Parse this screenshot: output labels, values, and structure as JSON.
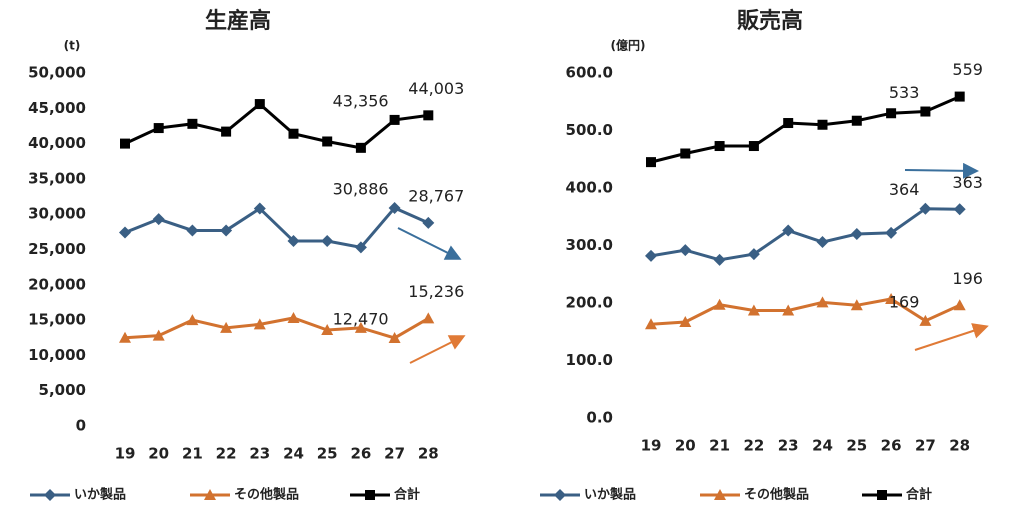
{
  "chart_data": [
    {
      "type": "line",
      "title": "生産高",
      "y_label": "(t)",
      "categories": [
        "19",
        "20",
        "21",
        "22",
        "23",
        "24",
        "25",
        "26",
        "27",
        "28"
      ],
      "ylim": [
        0,
        50000
      ],
      "yticks": [
        0,
        {
          "value": 5000,
          "label": "5,000"
        },
        {
          "value": 10000,
          "label": "10,000"
        },
        {
          "value": 15000,
          "label": "15,000"
        },
        {
          "value": 20000,
          "label": "20,000"
        },
        {
          "value": 25000,
          "label": "25,000"
        },
        {
          "value": 30000,
          "label": "30,000"
        },
        {
          "value": 35000,
          "label": "35,000"
        },
        {
          "value": 40000,
          "label": "40,000"
        },
        {
          "value": 45000,
          "label": "45,000"
        },
        {
          "value": 50000,
          "label": "50,000"
        }
      ],
      "series": [
        {
          "name": "いか製品",
          "color": "#3a5f84",
          "marker": "diamond",
          "values": [
            27400,
            29300,
            27700,
            27700,
            30800,
            26200,
            26200,
            25300,
            30886,
            28767
          ],
          "value_labels": [
            null,
            null,
            null,
            null,
            null,
            null,
            null,
            null,
            "30,886",
            "28,767"
          ]
        },
        {
          "name": "その他製品",
          "color": "#d2722f",
          "marker": "triangle",
          "values": [
            12500,
            12800,
            15000,
            13900,
            14400,
            15300,
            13600,
            13900,
            12470,
            15236
          ],
          "value_labels": [
            null,
            null,
            null,
            null,
            null,
            null,
            null,
            null,
            "12,470",
            "15,236"
          ]
        },
        {
          "name": "合計",
          "color": "#000000",
          "marker": "square",
          "values": [
            40000,
            42200,
            42800,
            41700,
            45600,
            41400,
            40300,
            39400,
            43356,
            44003
          ],
          "value_labels": [
            null,
            null,
            null,
            null,
            null,
            null,
            null,
            null,
            "43,356",
            "44,003"
          ]
        }
      ]
    },
    {
      "type": "line",
      "title": "販売高",
      "y_label": "(億円)",
      "categories": [
        "19",
        "20",
        "21",
        "22",
        "23",
        "24",
        "25",
        "26",
        "27",
        "28"
      ],
      "ylim": [
        0,
        600
      ],
      "yticks": [
        {
          "value": 0,
          "label": "0.0"
        },
        {
          "value": 100,
          "label": "100.0"
        },
        {
          "value": 200,
          "label": "200.0"
        },
        {
          "value": 300,
          "label": "300.0"
        },
        {
          "value": 400,
          "label": "400.0"
        },
        {
          "value": 500,
          "label": "500.0"
        },
        {
          "value": 600,
          "label": "600.0"
        }
      ],
      "series": [
        {
          "name": "いか製品",
          "color": "#3a5f84",
          "marker": "diamond",
          "values": [
            282,
            292,
            275,
            285,
            326,
            306,
            320,
            322,
            364,
            363
          ],
          "value_labels": [
            null,
            null,
            null,
            null,
            null,
            null,
            null,
            null,
            "364",
            "363"
          ]
        },
        {
          "name": "その他製品",
          "color": "#d2722f",
          "marker": "triangle",
          "values": [
            163,
            167,
            197,
            187,
            187,
            201,
            196,
            207,
            169,
            196
          ],
          "value_labels": [
            null,
            null,
            null,
            null,
            null,
            null,
            null,
            null,
            "169",
            "196"
          ]
        },
        {
          "name": "合計",
          "color": "#000000",
          "marker": "square",
          "values": [
            445,
            460,
            473,
            473,
            513,
            510,
            517,
            530,
            533,
            559
          ],
          "value_labels": [
            null,
            null,
            null,
            null,
            null,
            null,
            null,
            null,
            "533",
            "559"
          ]
        }
      ]
    }
  ]
}
